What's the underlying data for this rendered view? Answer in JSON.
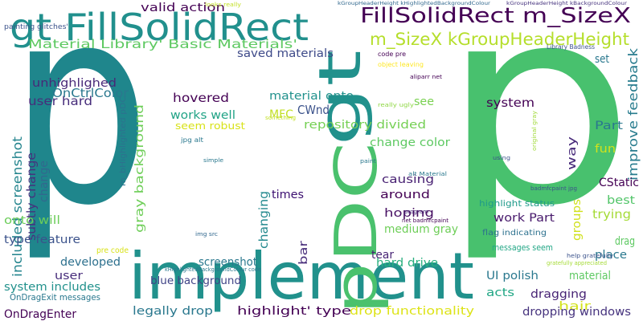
{
  "words": [
    {
      "text": "p",
      "color": "#1f868c"
    },
    {
      "text": "p",
      "color": "#48c16e"
    },
    {
      "text": "implement",
      "color": "#21918c"
    },
    {
      "text": "pDC",
      "color": "#4ac16d"
    },
    {
      "text": "gt",
      "color": "#21918c"
    },
    {
      "text": "gt FillSolidRect",
      "color": "#21908d"
    },
    {
      "text": "FillSolidRect m_SizeX",
      "color": "#440154"
    },
    {
      "text": "m_SizeX kGroupHeaderHeight",
      "color": "#b5de2b"
    },
    {
      "text": "Material Library' Basic Materials'",
      "color": "#5ec962"
    },
    {
      "text": "saved materials",
      "color": "#3e4a89"
    },
    {
      "text": "valid action",
      "color": "#440154"
    },
    {
      "text": "unhighlighed",
      "color": "#482878"
    },
    {
      "text": "user hard",
      "color": "#472d7b"
    },
    {
      "text": "OnCtrlColor",
      "color": "#2a788e"
    },
    {
      "text": "included screenshot",
      "color": "#25858e"
    },
    {
      "text": "subtly change",
      "color": "#46327e"
    },
    {
      "text": "change",
      "color": "#31688e"
    },
    {
      "text": "m_bHighlighted pDC",
      "color": "#2c728e"
    },
    {
      "text": "gray background",
      "color": "#6ece58"
    },
    {
      "text": "hovered",
      "color": "#440154"
    },
    {
      "text": "works well",
      "color": "#20a386"
    },
    {
      "text": "seem robust",
      "color": "#d8e219"
    },
    {
      "text": "material onto",
      "color": "#21918c"
    },
    {
      "text": "CWnd",
      "color": "#3b528b"
    },
    {
      "text": "see",
      "color": "#7ad151"
    },
    {
      "text": "system",
      "color": "#440154"
    },
    {
      "text": "set",
      "color": "#2a788e"
    },
    {
      "text": "improve feedback",
      "color": "#287c8e"
    },
    {
      "text": "repository divided",
      "color": "#75d054"
    },
    {
      "text": "MFC",
      "color": "#c2df23"
    },
    {
      "text": "change color",
      "color": "#5ec962"
    },
    {
      "text": "Part",
      "color": "#2a788e"
    },
    {
      "text": "fun",
      "color": "#d2e21b"
    },
    {
      "text": "way",
      "color": "#472a7a"
    },
    {
      "text": "CStatic",
      "color": "#440154"
    },
    {
      "text": "best",
      "color": "#52c569"
    },
    {
      "text": "trying",
      "color": "#a5db36"
    },
    {
      "text": "drag",
      "color": "#5ec962"
    },
    {
      "text": "changing",
      "color": "#23898e"
    },
    {
      "text": "times",
      "color": "#3b0f70"
    },
    {
      "text": "causing",
      "color": "#482173"
    },
    {
      "text": "around",
      "color": "#440154"
    },
    {
      "text": "hoping",
      "color": "#471063"
    },
    {
      "text": "medium gray",
      "color": "#6ece58"
    },
    {
      "text": "work Part",
      "color": "#481a6c"
    },
    {
      "text": "highlight status",
      "color": "#1f9a8a"
    },
    {
      "text": "groups",
      "color": "#d0e11c"
    },
    {
      "text": "flag indicating",
      "color": "#2c718e"
    },
    {
      "text": "screenshot",
      "color": "#2a788e"
    },
    {
      "text": "bar",
      "color": "#472c7a"
    },
    {
      "text": "onto will",
      "color": "#6ccd5a"
    },
    {
      "text": "type feature",
      "color": "#3b528b"
    },
    {
      "text": "developed",
      "color": "#2d708e"
    },
    {
      "text": "pre code",
      "color": "#d8e219"
    },
    {
      "text": "blue background",
      "color": "#414487"
    },
    {
      "text": "tear",
      "color": "#482475"
    },
    {
      "text": "hard drive",
      "color": "#29af7f"
    },
    {
      "text": "place",
      "color": "#2a788e"
    },
    {
      "text": "material",
      "color": "#5ec962"
    },
    {
      "text": "messages seem",
      "color": "#21a685"
    },
    {
      "text": "UI polish",
      "color": "#2a788e"
    },
    {
      "text": "acts",
      "color": "#22a785"
    },
    {
      "text": "dragging",
      "color": "#482475"
    },
    {
      "text": "hair",
      "color": "#d2e21b"
    },
    {
      "text": "dropping windows",
      "color": "#46337e"
    },
    {
      "text": "drop functionality",
      "color": "#dde318"
    },
    {
      "text": "highlight' type",
      "color": "#440154"
    },
    {
      "text": "legally drop",
      "color": "#2a788e"
    },
    {
      "text": "OnDragEnter",
      "color": "#440154"
    },
    {
      "text": "OnDragExit messages",
      "color": "#2a788e"
    },
    {
      "text": "system includes",
      "color": "#21918c"
    },
    {
      "text": "user",
      "color": "#472d7b"
    },
    {
      "text": "painting glitches'",
      "color": "#3b528b"
    },
    {
      "text": "looks really",
      "color": "#c2df23"
    },
    {
      "text": "kGroupHeaderHeight kHighlightedBackgroundColour",
      "color": "#31688e"
    },
    {
      "text": "kGroupHeaderHeight kBackgroundColour",
      "color": "#46337e"
    },
    {
      "text": "code pre",
      "color": "#440154"
    },
    {
      "text": "object leaving",
      "color": "#fde725"
    },
    {
      "text": "aliparr net",
      "color": "#440154"
    },
    {
      "text": "Library Badness",
      "color": "#3b528b"
    },
    {
      "text": "really ugly",
      "color": "#8fd744"
    },
    {
      "text": "alt Material",
      "color": "#2a788e"
    },
    {
      "text": "net badmfcpaint",
      "color": "#440154"
    },
    {
      "text": "badmfcpaint jpg",
      "color": "#3b528b"
    },
    {
      "text": "jpg alt",
      "color": "#2a788e"
    },
    {
      "text": "img src",
      "color": "#31688e"
    },
    {
      "text": "simple",
      "color": "#2a788e"
    },
    {
      "text": "original gray",
      "color": "#a0da39"
    },
    {
      "text": "kHighlightedBackgroundColour code",
      "color": "#2a788e"
    },
    {
      "text": "gratefully appreciated",
      "color": "#a5db36"
    },
    {
      "text": "help gratefully",
      "color": "#3b528b"
    },
    {
      "text": "using",
      "color": "#3b528b"
    },
    {
      "text": "paint",
      "color": "#2a788e"
    },
    {
      "text": "program",
      "color": "#482878"
    },
    {
      "text": "something",
      "color": "#c2df23"
    }
  ]
}
